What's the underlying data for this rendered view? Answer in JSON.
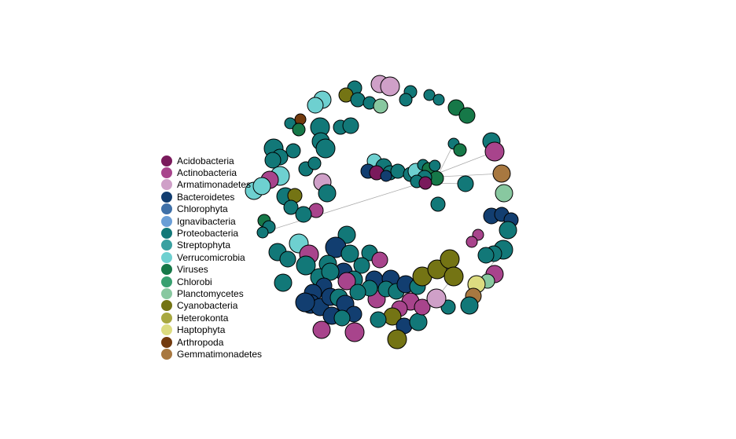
{
  "legend": {
    "items": [
      {
        "label": "Acidobacteria",
        "color": "#7a1a5c"
      },
      {
        "label": "Actinobacteria",
        "color": "#a8448c"
      },
      {
        "label": "Armatimonadetes",
        "color": "#cfa0c8"
      },
      {
        "label": "Bacteroidetes",
        "color": "#123e70"
      },
      {
        "label": "Chlorophyta",
        "color": "#3f70a8"
      },
      {
        "label": "Ignavibacteria",
        "color": "#6a9ed6"
      },
      {
        "label": "Proteobacteria",
        "color": "#127878"
      },
      {
        "label": "Streptophyta",
        "color": "#3aa0a0"
      },
      {
        "label": "Verrucomicrobia",
        "color": "#6ed0d0"
      },
      {
        "label": "Viruses",
        "color": "#167848"
      },
      {
        "label": "Chlorobi",
        "color": "#38a070"
      },
      {
        "label": "Planctomycetes",
        "color": "#88c8a0"
      },
      {
        "label": "Cyanobacteria",
        "color": "#747414"
      },
      {
        "label": "Heterokonta",
        "color": "#a8a840"
      },
      {
        "label": "Haptophyta",
        "color": "#dcdc80"
      },
      {
        "label": "Arthropoda",
        "color": "#723a0e"
      },
      {
        "label": "Gemmatimonadetes",
        "color": "#a87840"
      }
    ]
  }
}
